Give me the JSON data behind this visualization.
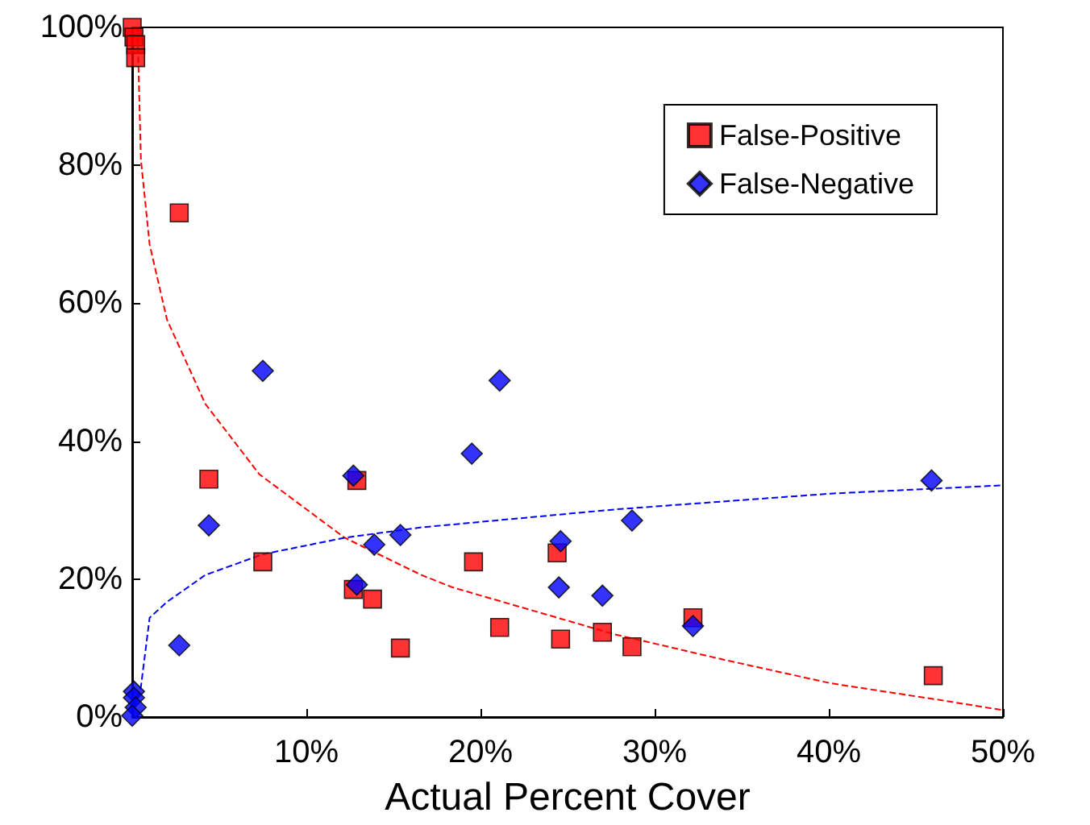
{
  "chart_data": {
    "type": "scatter",
    "xlabel": "Actual Percent Cover",
    "xlim": [
      0,
      50
    ],
    "xticks": [
      {
        "value": 0,
        "label": null
      },
      {
        "value": 10,
        "label": "10%"
      },
      {
        "value": 20,
        "label": "20%"
      },
      {
        "value": 30,
        "label": "30%"
      },
      {
        "value": 40,
        "label": "40%"
      },
      {
        "value": 50,
        "label": "50%"
      }
    ],
    "ylim": [
      0,
      100
    ],
    "yticks": [
      {
        "value": 0,
        "label": "0%"
      },
      {
        "value": 20,
        "label": "20%"
      },
      {
        "value": 40,
        "label": "40%"
      },
      {
        "value": 60,
        "label": "60%"
      },
      {
        "value": 80,
        "label": "80%"
      },
      {
        "value": 100,
        "label": "100%"
      }
    ],
    "grid": false,
    "legend": "top right",
    "series": [
      {
        "name": "False-Positive",
        "color": "#ff0000",
        "marker": "square",
        "x": [
          0,
          0.1,
          0.2,
          0.2,
          2.7,
          4.4,
          7.5,
          12.7,
          12.9,
          13.8,
          15.4,
          19.6,
          21.1,
          24.6,
          24.4,
          27.0,
          28.7,
          32.2,
          46.0
        ],
        "values": [
          100,
          98.6,
          97.5,
          95.6,
          73.1,
          34.5,
          22.5,
          18.5,
          34.3,
          17.1,
          10,
          22.5,
          13,
          11.3,
          23.8,
          12.3,
          10.2,
          14.4,
          6.0
        ]
      },
      {
        "name": "False-Negative",
        "color": "#0000ff",
        "marker": "diamond",
        "x": [
          0.1,
          0.1,
          0.2,
          0,
          2.7,
          4.4,
          7.5,
          12.7,
          12.9,
          13.9,
          15.4,
          19.5,
          21.1,
          24.6,
          24.5,
          27.0,
          28.7,
          32.2,
          45.9
        ],
        "values": [
          3.7,
          2.8,
          1.4,
          0.2,
          10.4,
          27.8,
          50.2,
          35,
          19.2,
          25,
          26.4,
          38.2,
          48.8,
          25.5,
          18.8,
          17.6,
          28.5,
          13.2,
          34.3
        ]
      },
      {
        "type": "line",
        "color": "#ff0000",
        "marker": "none",
        "line_style": "dashed",
        "x": [
          0.3,
          0.5,
          1.0,
          2.0,
          4.2,
          7.3,
          12.2,
          16.6,
          18.4,
          27.7,
          34,
          40.1,
          46.3,
          50
        ],
        "values": [
          100,
          80.8,
          68.5,
          57.6,
          45.4,
          35.2,
          26,
          20.6,
          18.8,
          12,
          8.3,
          4.9,
          2.5,
          1.0
        ]
      },
      {
        "type": "line",
        "color": "#0000ff",
        "marker": "none",
        "line_style": "dashed",
        "x": [
          0.1,
          0.5,
          1,
          2,
          4.2,
          7.5,
          12.2,
          16.6,
          27.7,
          40.1,
          50
        ],
        "values": [
          1.4,
          4.4,
          14.4,
          16.7,
          20.6,
          23.6,
          26,
          27.5,
          30.1,
          32.4,
          33.6
        ]
      }
    ]
  }
}
